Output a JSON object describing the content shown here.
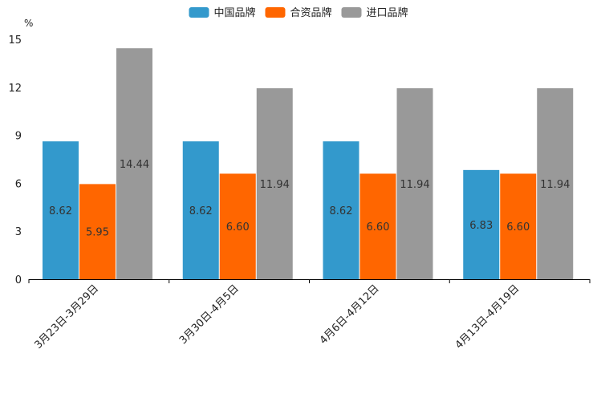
{
  "chart_data": {
    "type": "bar",
    "ylabel": "%",
    "ylim": [
      0,
      15
    ],
    "yticks": [
      0,
      3,
      6,
      9,
      12,
      15
    ],
    "categories": [
      "3月23日-3月29日",
      "3月30日-4月5日",
      "4月6日-4月12日",
      "4月13日-4月19日"
    ],
    "series": [
      {
        "name": "中国品牌",
        "color": "#3399cc",
        "values": [
          8.62,
          8.62,
          8.62,
          6.83
        ],
        "labels": [
          "8.62",
          "8.62",
          "8.62",
          "6.83"
        ]
      },
      {
        "name": "合资品牌",
        "color": "#ff6600",
        "values": [
          5.95,
          6.6,
          6.6,
          6.6
        ],
        "labels": [
          "5.95",
          "6.60",
          "6.60",
          "6.60"
        ]
      },
      {
        "name": "进口品牌",
        "color": "#999999",
        "values": [
          14.44,
          11.94,
          11.94,
          11.94
        ],
        "labels": [
          "14.44",
          "11.94",
          "11.94",
          "11.94"
        ]
      }
    ],
    "legend_position": "top-center"
  }
}
